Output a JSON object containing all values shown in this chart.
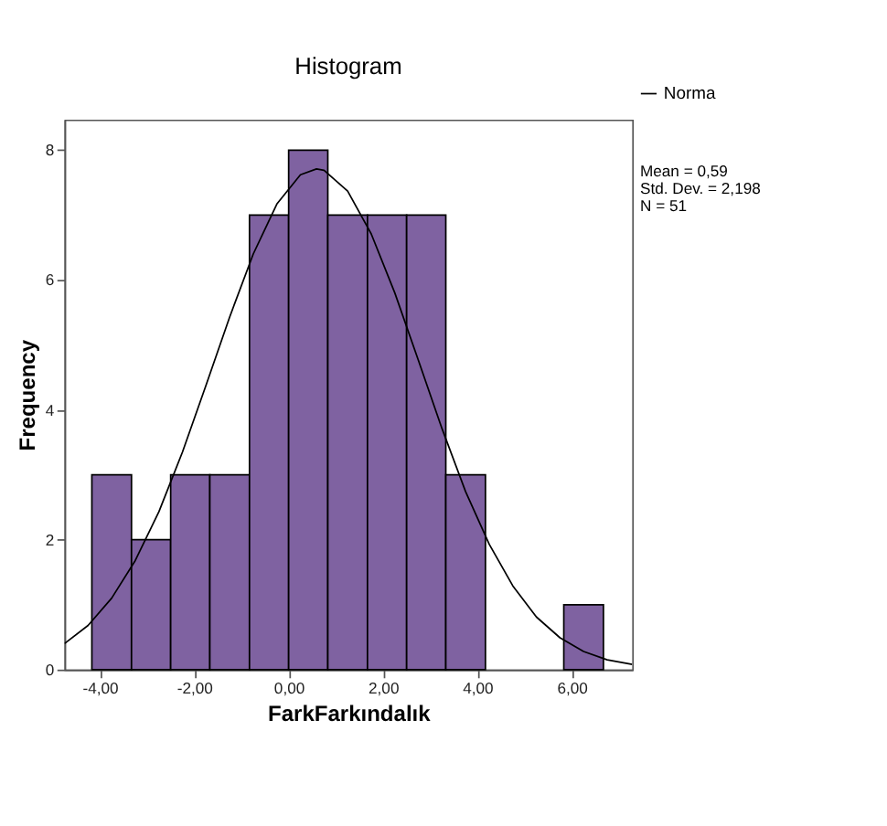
{
  "chart_data": {
    "type": "histogram",
    "title": "Histogram",
    "xlabel": "FarkFarkındalık",
    "ylabel": "Frequency",
    "bins": [
      -4.17,
      -3.33,
      -2.5,
      -1.67,
      -0.83,
      0,
      0.83,
      1.67,
      2.5,
      3.33,
      4.17,
      5.83,
      6.67
    ],
    "values": [
      3,
      2,
      3,
      3,
      7,
      8,
      7,
      7,
      7,
      3,
      0,
      1
    ],
    "color": "#7f62a1",
    "series": [
      {
        "type": "line",
        "name": "Norma",
        "color": "#000000",
        "x": [
          -4.75,
          -4.25,
          -3.75,
          -3.25,
          -2.75,
          -2.25,
          -1.75,
          -1.25,
          -0.75,
          -0.25,
          0.25,
          0.59,
          0.75,
          1.25,
          1.75,
          2.25,
          2.75,
          3.25,
          3.75,
          4.25,
          4.75,
          5.25,
          5.75,
          6.25,
          6.75,
          7.28
        ],
        "values": [
          0.4,
          0.68,
          1.1,
          1.68,
          2.43,
          3.35,
          4.38,
          5.43,
          6.4,
          7.17,
          7.62,
          7.71,
          7.69,
          7.37,
          6.71,
          5.8,
          4.76,
          3.71,
          2.74,
          1.93,
          1.29,
          0.81,
          0.49,
          0.28,
          0.15,
          0.08
        ]
      }
    ],
    "xlim": [
      -4.75,
      7.28
    ],
    "ylim": [
      0,
      8.47
    ],
    "xticks": [
      {
        "value": -4,
        "label": "-4,00"
      },
      {
        "value": -2,
        "label": "-2,00"
      },
      {
        "value": 0,
        "label": "0,00"
      },
      {
        "value": 2,
        "label": "2,00"
      },
      {
        "value": 4,
        "label": "4,00"
      },
      {
        "value": 6,
        "label": "6,00"
      }
    ],
    "yticks": [
      0,
      2,
      4,
      6,
      8
    ],
    "annotations": [
      "Mean = 0,59",
      "Std. Dev. = 2,198",
      "N = 51"
    ],
    "legend": "top right",
    "grid": false
  }
}
